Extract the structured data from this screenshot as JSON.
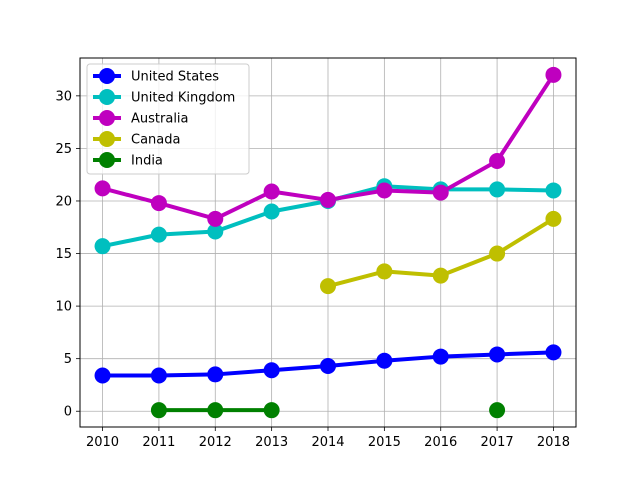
{
  "chart_data": {
    "type": "line",
    "title": "",
    "xlabel": "",
    "ylabel": "",
    "x": [
      2010,
      2011,
      2012,
      2013,
      2014,
      2015,
      2016,
      2017,
      2018
    ],
    "xlim": [
      2009.6,
      2018.4
    ],
    "ylim": [
      -1.5,
      33.6
    ],
    "xticks": [
      "2010",
      "2011",
      "2012",
      "2013",
      "2014",
      "2015",
      "2016",
      "2017",
      "2018"
    ],
    "yticks": [
      "0",
      "5",
      "10",
      "15",
      "20",
      "25",
      "30"
    ],
    "grid": true,
    "legend_position": "top-left",
    "series": [
      {
        "name": "United States",
        "color": "#0000ff",
        "values": [
          3.4,
          3.4,
          3.5,
          3.9,
          4.3,
          4.8,
          5.2,
          5.4,
          5.6
        ]
      },
      {
        "name": "United Kingdom",
        "color": "#00bfbf",
        "values": [
          15.7,
          16.8,
          17.1,
          19.0,
          20.0,
          21.4,
          21.1,
          21.1,
          21.0
        ]
      },
      {
        "name": "Australia",
        "color": "#bf00bf",
        "values": [
          21.2,
          19.8,
          18.3,
          20.9,
          20.1,
          21.0,
          20.8,
          23.8,
          32.0
        ]
      },
      {
        "name": "Canada",
        "color": "#bfbf00",
        "values": [
          null,
          null,
          null,
          null,
          11.9,
          13.3,
          12.9,
          15.0,
          18.3
        ]
      },
      {
        "name": "India",
        "color": "#008000",
        "values": [
          null,
          0.1,
          0.1,
          0.1,
          null,
          null,
          null,
          0.1,
          null
        ]
      }
    ]
  }
}
